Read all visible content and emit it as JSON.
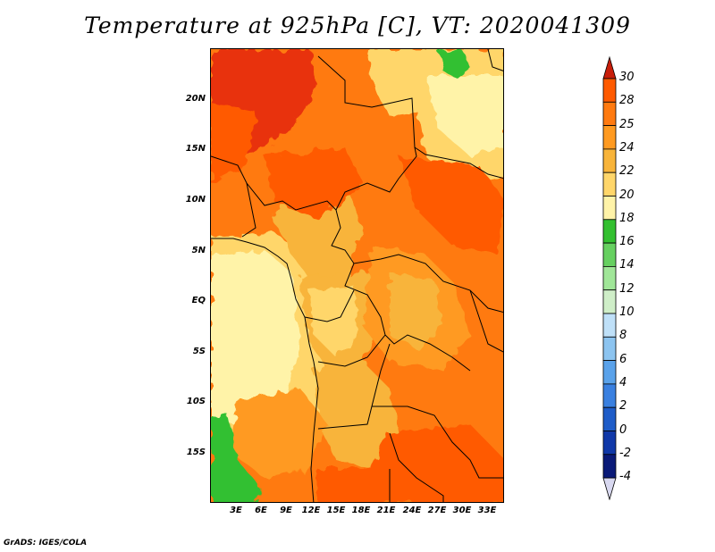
{
  "title": "Temperature at 925hPa [C], VT: 2020041309",
  "credit": "GrADS: IGES/COLA",
  "map": {
    "region": "Central Africa",
    "lat_range": [
      -20,
      25
    ],
    "lon_range": [
      0,
      35
    ],
    "lat_ticks": [
      "20N",
      "15N",
      "10N",
      "5N",
      "EQ",
      "5S",
      "10S",
      "15S"
    ],
    "lon_ticks": [
      "3E",
      "6E",
      "9E",
      "12E",
      "15E",
      "18E",
      "21E",
      "24E",
      "27E",
      "30E",
      "33E"
    ]
  },
  "colorbar": {
    "labels": [
      "30",
      "28",
      "25",
      "24",
      "22",
      "20",
      "18",
      "16",
      "14",
      "12",
      "10",
      "8",
      "6",
      "4",
      "2",
      "0",
      "-2",
      "-4"
    ],
    "colors": [
      "#e8300a",
      "#ff5a00",
      "#ff7a10",
      "#ff9a20",
      "#f8b43a",
      "#ffd66a",
      "#fff3a8",
      "#33c030",
      "#66d060",
      "#a0e698",
      "#cfeec8",
      "#bfe0f8",
      "#8cc4f0",
      "#5aa2ea",
      "#3a80e0",
      "#1e5cc8",
      "#1038a8",
      "#0a1a78"
    ],
    "top_arrow_color": "#c81e0a",
    "bottom_arrow_color": "#d8d8f0"
  }
}
